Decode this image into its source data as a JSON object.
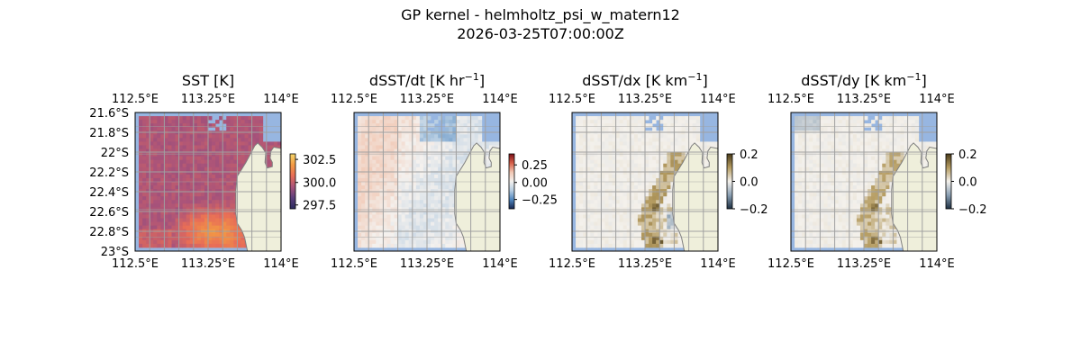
{
  "figure": {
    "title_line1": "GP kernel - helmholtz_psi_w_matern12",
    "title_line2": "2026-03-25T07:00:00Z"
  },
  "map": {
    "lon_ticks": [
      "112.5°E",
      "113.25°E",
      "114°E"
    ],
    "lat_ticks": [
      "21.6°S",
      "21.8°S",
      "22°S",
      "22.2°S",
      "22.4°S",
      "22.6°S",
      "22.8°S",
      "23°S"
    ],
    "extent": {
      "lon": [
        112.5,
        114.0
      ],
      "lat": [
        -23.0,
        -21.6
      ]
    },
    "colors": {
      "land": "#efefdb",
      "ocean": "#97b6e1",
      "coast": "#7f7f7f",
      "grid": "#a0a0a0"
    }
  },
  "panels": [
    {
      "id": "sst",
      "title_main": "SST [K]",
      "title_sup": "",
      "title_tail": "",
      "colorbar": {
        "ticks": [
          "302.5",
          "300.0",
          "297.5"
        ],
        "colormap": "thermal",
        "stops": [
          "#f5d66b",
          "#f39a43",
          "#e86d57",
          "#a9537a",
          "#5d3f7c",
          "#2b2b5e"
        ]
      }
    },
    {
      "id": "dsst-dt",
      "title_main": "dSST/dt [K hr",
      "title_sup": "−1",
      "title_tail": "]",
      "colorbar": {
        "ticks": [
          "0.25",
          "0.00",
          "−0.25"
        ],
        "colormap": "balance",
        "stops": [
          "#7a1017",
          "#d8604a",
          "#f1c7b3",
          "#f4f1ee",
          "#b6cde2",
          "#4f86be",
          "#16254f"
        ]
      }
    },
    {
      "id": "dsst-dx",
      "title_main": "dSST/dx [K km",
      "title_sup": "−1",
      "title_tail": "]",
      "colorbar": {
        "ticks": [
          "0.2",
          "0.0",
          "−0.2"
        ],
        "colormap": "diff",
        "stops": [
          "#4a3b1a",
          "#b59c61",
          "#f4f1ec",
          "#8aa0b4",
          "#1d2f42"
        ]
      }
    },
    {
      "id": "dsst-dy",
      "title_main": "dSST/dy [K km",
      "title_sup": "−1",
      "title_tail": "]",
      "colorbar": {
        "ticks": [
          "0.2",
          "0.0",
          "−0.2"
        ],
        "colormap": "diff",
        "stops": [
          "#4a3b1a",
          "#b59c61",
          "#f4f1ec",
          "#8aa0b4",
          "#1d2f42"
        ]
      }
    }
  ]
}
